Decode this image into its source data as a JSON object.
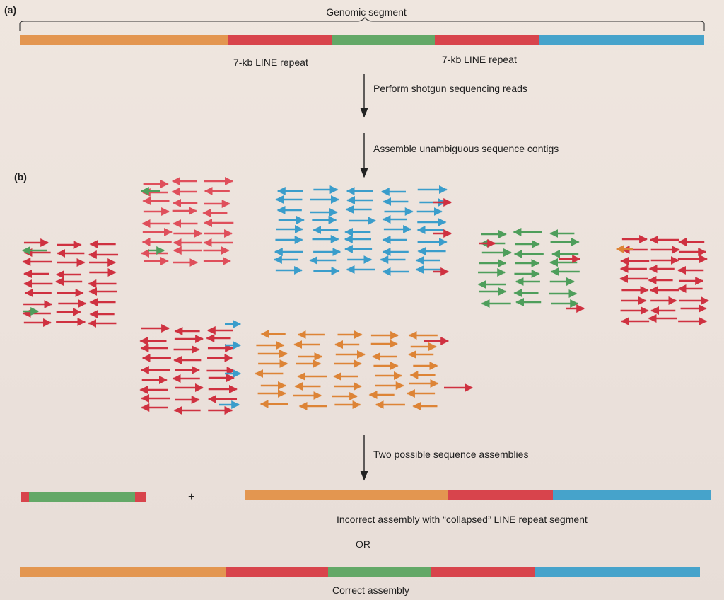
{
  "panel_a": {
    "label": "(a)",
    "title": "Genomic segment",
    "repeat_label_1": "7-kb LINE repeat",
    "repeat_label_2": "7-kb LINE repeat"
  },
  "steps": {
    "step1": "Perform shotgun sequencing reads",
    "step2": "Assemble unambiguous sequence contigs",
    "step3": "Two possible sequence assemblies"
  },
  "panel_b": {
    "label": "(b)",
    "plus": "+",
    "incorrect_label": "Incorrect assembly with “collapsed” LINE repeat segment",
    "or_label": "OR",
    "correct_label": "Correct assembly"
  },
  "colors": {
    "orange": "#e08f45",
    "red": "#d63b44",
    "green": "#57a25e",
    "blue": "#3e9fc8",
    "arrow_red": "#cf3140",
    "arrow_pink": "#df4f5b",
    "arrow_blue": "#3a9dcb",
    "arrow_orange": "#dd8436",
    "arrow_green": "#4e9e5b"
  }
}
